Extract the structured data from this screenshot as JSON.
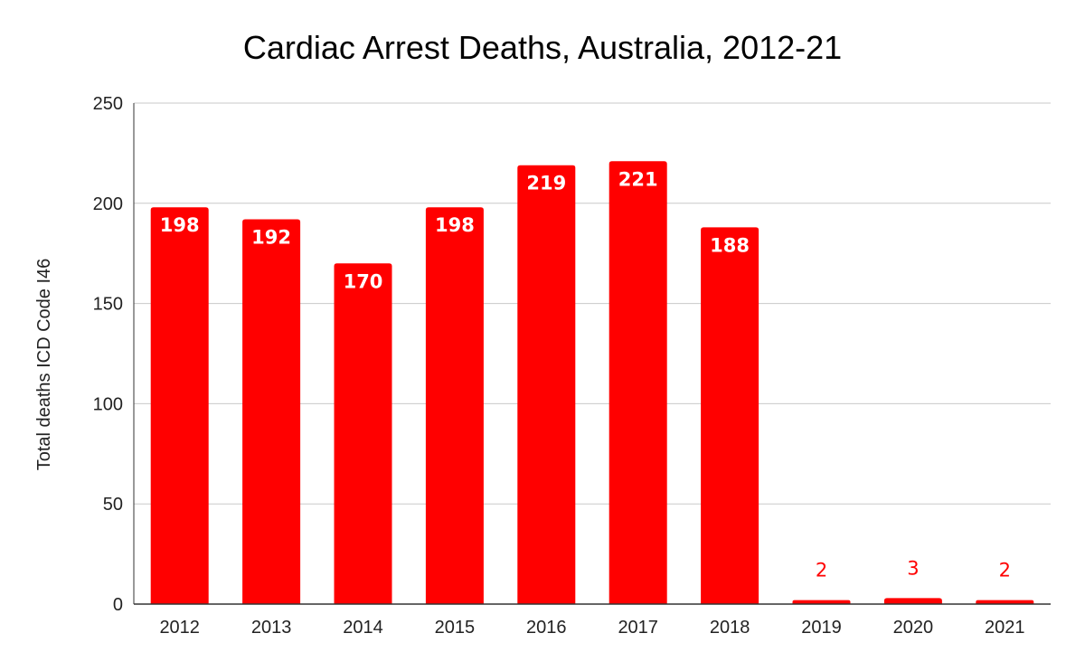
{
  "chart_data": {
    "type": "bar",
    "title": "Cardiac Arrest Deaths, Australia, 2012-21",
    "xlabel": "",
    "ylabel": "Total deaths ICD Code I46",
    "categories": [
      "2012",
      "2013",
      "2014",
      "2015",
      "2016",
      "2017",
      "2018",
      "2019",
      "2020",
      "2021"
    ],
    "values": [
      198,
      192,
      170,
      198,
      219,
      221,
      188,
      2,
      3,
      2
    ],
    "data_labels": [
      "198",
      "192",
      "170",
      "198",
      "219",
      "221",
      "188",
      "2",
      "3",
      "2"
    ],
    "ylim": [
      0,
      250
    ],
    "yticks": [
      "0",
      "50",
      "100",
      "150",
      "200",
      "250"
    ],
    "grid": true,
    "legend": "none",
    "bar_color": "#ff0000"
  }
}
